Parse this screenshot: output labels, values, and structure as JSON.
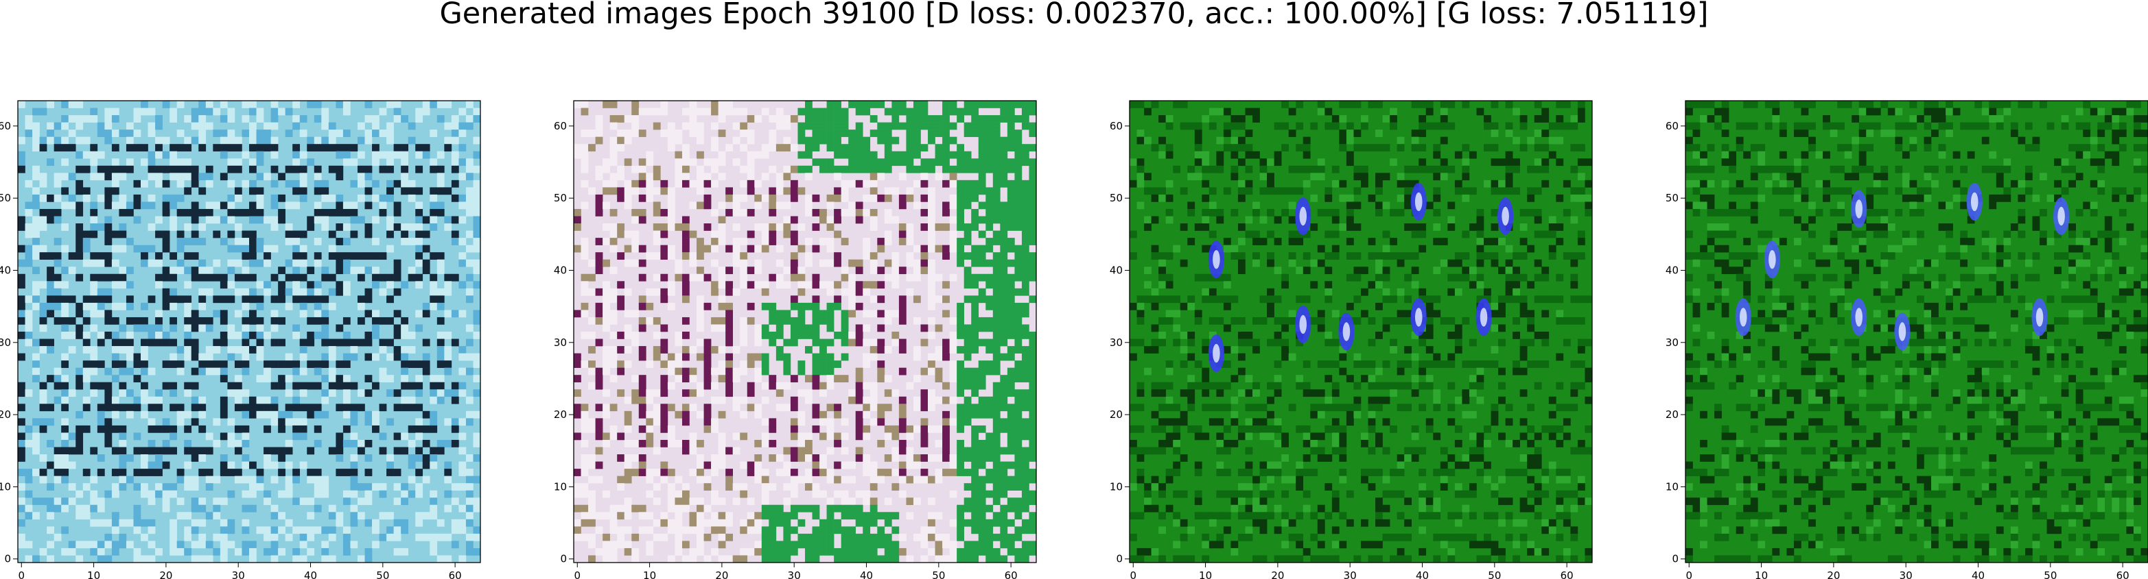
{
  "figure": {
    "title": "Generated images Epoch 39100 [D loss: 0.002370, acc.: 100.00%] [G loss: 7.051119]"
  },
  "chart_data": [
    {
      "type": "image",
      "xlim": [
        -0.5,
        63.5
      ],
      "ylim": [
        63.5,
        -0.5
      ],
      "xticks": [
        0,
        10,
        20,
        30,
        40,
        50,
        60
      ],
      "yticks": [
        0,
        10,
        20,
        30,
        40,
        50,
        60
      ],
      "palette": {
        "base": "#8fd0e0",
        "alt": "#c8ecf2",
        "dark": "#14283a",
        "accent": "#5ab0d6",
        "border": "#9aa0c8"
      },
      "style": "cyan-grid"
    },
    {
      "type": "image",
      "xlim": [
        -0.5,
        63.5
      ],
      "ylim": [
        63.5,
        -0.5
      ],
      "xticks": [
        0,
        10,
        20,
        30,
        40,
        50,
        60
      ],
      "yticks": [
        0,
        10,
        20,
        30,
        40,
        50,
        60
      ],
      "palette": {
        "base": "#e8dcea",
        "alt": "#f4eef4",
        "dark": "#6a1a55",
        "accent": "#22a04a",
        "border": "#a09070"
      },
      "style": "pink-green"
    },
    {
      "type": "image",
      "xlim": [
        -0.5,
        63.5
      ],
      "ylim": [
        63.5,
        -0.5
      ],
      "xticks": [
        0,
        10,
        20,
        30,
        40,
        50,
        60
      ],
      "yticks": [
        0,
        10,
        20,
        30,
        40,
        50,
        60
      ],
      "palette": {
        "base": "#1a8a1a",
        "alt": "#0e6a10",
        "dark": "#0a3a0c",
        "accent": "#3a3aff",
        "border": "#0a5a0a"
      },
      "style": "green-blue"
    },
    {
      "type": "image",
      "xlim": [
        -0.5,
        63.5
      ],
      "ylim": [
        63.5,
        -0.5
      ],
      "xticks": [
        0,
        10,
        20,
        30,
        40,
        50,
        60
      ],
      "yticks": [
        0,
        10,
        20,
        30,
        40,
        50,
        60
      ],
      "palette": {
        "base": "#1a8a1a",
        "alt": "#0e6a10",
        "dark": "#0a3a0c",
        "accent": "#4a5aff",
        "border": "#0a5a0a"
      },
      "style": "green-blue"
    }
  ]
}
